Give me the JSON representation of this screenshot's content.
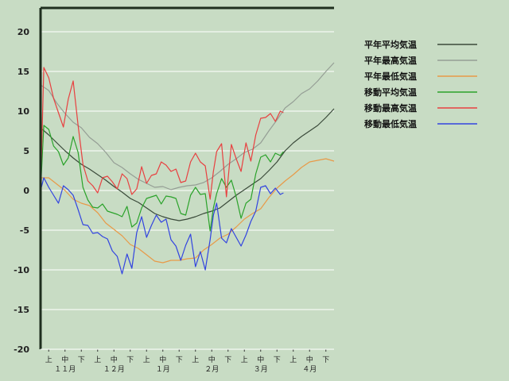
{
  "chart_data": {
    "type": "line",
    "title": "",
    "xlabel": "",
    "ylabel": "",
    "ylim": [
      -20,
      23
    ],
    "y_ticks": [
      20,
      15,
      10,
      5,
      0,
      -5,
      -10,
      -15,
      -20
    ],
    "x_period_labels": [
      "上",
      "中",
      "下",
      "上",
      "中",
      "下",
      "上",
      "中",
      "下",
      "上",
      "中",
      "下",
      "上",
      "中",
      "下",
      "上",
      "中",
      "下"
    ],
    "x_month_labels": [
      "１１月",
      "１２月",
      "１月",
      "２月",
      "３月",
      "４月"
    ],
    "grid": true,
    "legend": "right",
    "x_unit": "day since Nov 1 (0 = Nov 1, 180 = end of April)",
    "series": [
      {
        "name": "平年平均気温",
        "color": "#3a4a3a",
        "x": [
          0,
          5,
          10,
          15,
          20,
          25,
          30,
          35,
          40,
          45,
          50,
          55,
          60,
          65,
          70,
          75,
          80,
          85,
          90,
          95,
          100,
          105,
          110,
          115,
          120,
          125,
          130,
          135,
          140,
          145,
          150,
          155,
          160,
          165,
          170,
          175,
          180
        ],
        "y": [
          7.9,
          7.0,
          6.0,
          5.0,
          4.1,
          3.3,
          2.7,
          2.0,
          1.3,
          0.5,
          -0.2,
          -1.0,
          -1.5,
          -2.2,
          -2.9,
          -3.3,
          -3.6,
          -3.8,
          -3.6,
          -3.3,
          -2.9,
          -2.6,
          -2.2,
          -1.4,
          -0.6,
          0.1,
          0.8,
          1.5,
          2.5,
          3.6,
          5.0,
          6.0,
          6.8,
          7.5,
          8.2,
          9.2,
          10.3
        ]
      },
      {
        "name": "平年最高気温",
        "color": "#959e95",
        "x": [
          0,
          5,
          10,
          15,
          20,
          25,
          30,
          35,
          40,
          45,
          50,
          55,
          60,
          65,
          70,
          75,
          80,
          85,
          90,
          95,
          100,
          105,
          110,
          115,
          120,
          125,
          130,
          135,
          140,
          145,
          150,
          155,
          160,
          165,
          170,
          175,
          180
        ],
        "y": [
          13.3,
          12.6,
          11.0,
          9.7,
          8.6,
          7.9,
          6.7,
          5.9,
          4.8,
          3.5,
          2.9,
          2.1,
          1.4,
          0.9,
          0.4,
          0.5,
          0.1,
          0.4,
          0.6,
          0.7,
          1.0,
          1.6,
          2.4,
          3.3,
          4.0,
          4.8,
          5.2,
          6.0,
          7.5,
          8.9,
          10.4,
          11.2,
          12.2,
          12.8,
          13.8,
          15.0,
          16.1
        ]
      },
      {
        "name": "平年最低気温",
        "color": "#e89a48",
        "x": [
          0,
          5,
          10,
          15,
          20,
          25,
          30,
          35,
          40,
          45,
          50,
          55,
          60,
          65,
          70,
          75,
          80,
          85,
          90,
          95,
          100,
          105,
          110,
          115,
          120,
          125,
          130,
          135,
          140,
          145,
          150,
          155,
          160,
          165,
          170,
          175,
          180
        ],
        "y": [
          1.6,
          1.6,
          0.8,
          0.0,
          -1.1,
          -1.6,
          -1.9,
          -2.8,
          -4.1,
          -4.9,
          -5.7,
          -6.8,
          -7.3,
          -8.1,
          -8.9,
          -9.1,
          -8.8,
          -8.8,
          -8.6,
          -8.5,
          -7.5,
          -6.8,
          -6.0,
          -5.5,
          -4.6,
          -3.6,
          -2.9,
          -2.3,
          -0.9,
          0.3,
          1.2,
          2.0,
          2.9,
          3.6,
          3.8,
          4.0,
          3.7
        ]
      },
      {
        "name": "移動平均気温",
        "color": "#2aa22a",
        "x": [
          0,
          2,
          5,
          8,
          11,
          14,
          17,
          20,
          23,
          26,
          29,
          32,
          35,
          38,
          41,
          44,
          47,
          50,
          53,
          56,
          59,
          62,
          65,
          68,
          71,
          74,
          77,
          80,
          83,
          86,
          89,
          92,
          95,
          98,
          101,
          104,
          106,
          108,
          111,
          114,
          117,
          120,
          123,
          126,
          129,
          132,
          135,
          138,
          141,
          144,
          147,
          149
        ],
        "y": [
          0,
          8.2,
          7.7,
          5.6,
          4.9,
          3.2,
          4.1,
          6.8,
          4.8,
          0.4,
          -1.2,
          -2.1,
          -2.2,
          -1.7,
          -2.6,
          -2.8,
          -3.0,
          -3.3,
          -2.0,
          -4.6,
          -4.1,
          -2.2,
          -1.0,
          -0.8,
          -0.6,
          -1.7,
          -0.7,
          -0.8,
          -1.0,
          -2.9,
          -3.1,
          -0.6,
          0.4,
          -0.5,
          -0.4,
          -5.1,
          -2.2,
          -0.4,
          1.5,
          0.4,
          1.3,
          -0.8,
          -3.5,
          -1.6,
          -1.1,
          2.1,
          4.2,
          4.5,
          3.6,
          4.7,
          4.4,
          4.9
        ]
      },
      {
        "name": "移動最高気温",
        "color": "#e84040",
        "x": [
          0,
          2,
          5,
          8,
          11,
          14,
          17,
          20,
          23,
          26,
          29,
          32,
          35,
          38,
          41,
          44,
          47,
          50,
          53,
          56,
          59,
          62,
          65,
          68,
          71,
          74,
          77,
          80,
          83,
          86,
          89,
          92,
          95,
          98,
          101,
          104,
          106,
          108,
          111,
          114,
          117,
          120,
          123,
          126,
          129,
          132,
          135,
          138,
          141,
          144,
          147,
          149
        ],
        "y": [
          0,
          15.5,
          14.2,
          11.6,
          9.8,
          8.0,
          11.5,
          13.8,
          8.2,
          3.3,
          1.2,
          0.6,
          -0.3,
          1.6,
          1.8,
          1.1,
          0.2,
          2.1,
          1.5,
          -0.5,
          0.2,
          3.0,
          0.9,
          1.9,
          2.1,
          3.6,
          3.2,
          2.4,
          2.7,
          1.0,
          1.2,
          3.6,
          4.7,
          3.6,
          3.1,
          -1.1,
          2.4,
          4.9,
          5.9,
          -0.8,
          5.8,
          4.0,
          2.4,
          6.0,
          3.7,
          7.0,
          9.1,
          9.2,
          9.7,
          8.7,
          10.0,
          9.8
        ]
      },
      {
        "name": "移動最低気温",
        "color": "#3244e0",
        "x": [
          0,
          2,
          5,
          8,
          11,
          14,
          17,
          20,
          23,
          26,
          29,
          32,
          35,
          38,
          41,
          44,
          47,
          50,
          53,
          56,
          59,
          62,
          65,
          68,
          71,
          74,
          77,
          80,
          83,
          86,
          89,
          92,
          95,
          98,
          101,
          104,
          106,
          108,
          111,
          114,
          117,
          120,
          123,
          126,
          129,
          132,
          135,
          138,
          141,
          144,
          147,
          149
        ],
        "y": [
          0,
          1.6,
          0.4,
          -0.6,
          -1.6,
          0.6,
          0.1,
          -0.6,
          -2.4,
          -4.3,
          -4.4,
          -5.4,
          -5.3,
          -5.8,
          -6.1,
          -7.6,
          -8.3,
          -10.5,
          -8.0,
          -9.8,
          -5.3,
          -3.3,
          -5.9,
          -4.4,
          -3.1,
          -4.0,
          -3.6,
          -6.2,
          -7.0,
          -8.8,
          -6.9,
          -5.5,
          -9.6,
          -7.7,
          -10.0,
          -6.2,
          -3.1,
          -1.6,
          -6.0,
          -6.6,
          -4.8,
          -5.9,
          -7.0,
          -5.6,
          -3.9,
          -2.6,
          0.4,
          0.6,
          -0.4,
          0.3,
          -0.5,
          -0.3
        ]
      }
    ]
  }
}
